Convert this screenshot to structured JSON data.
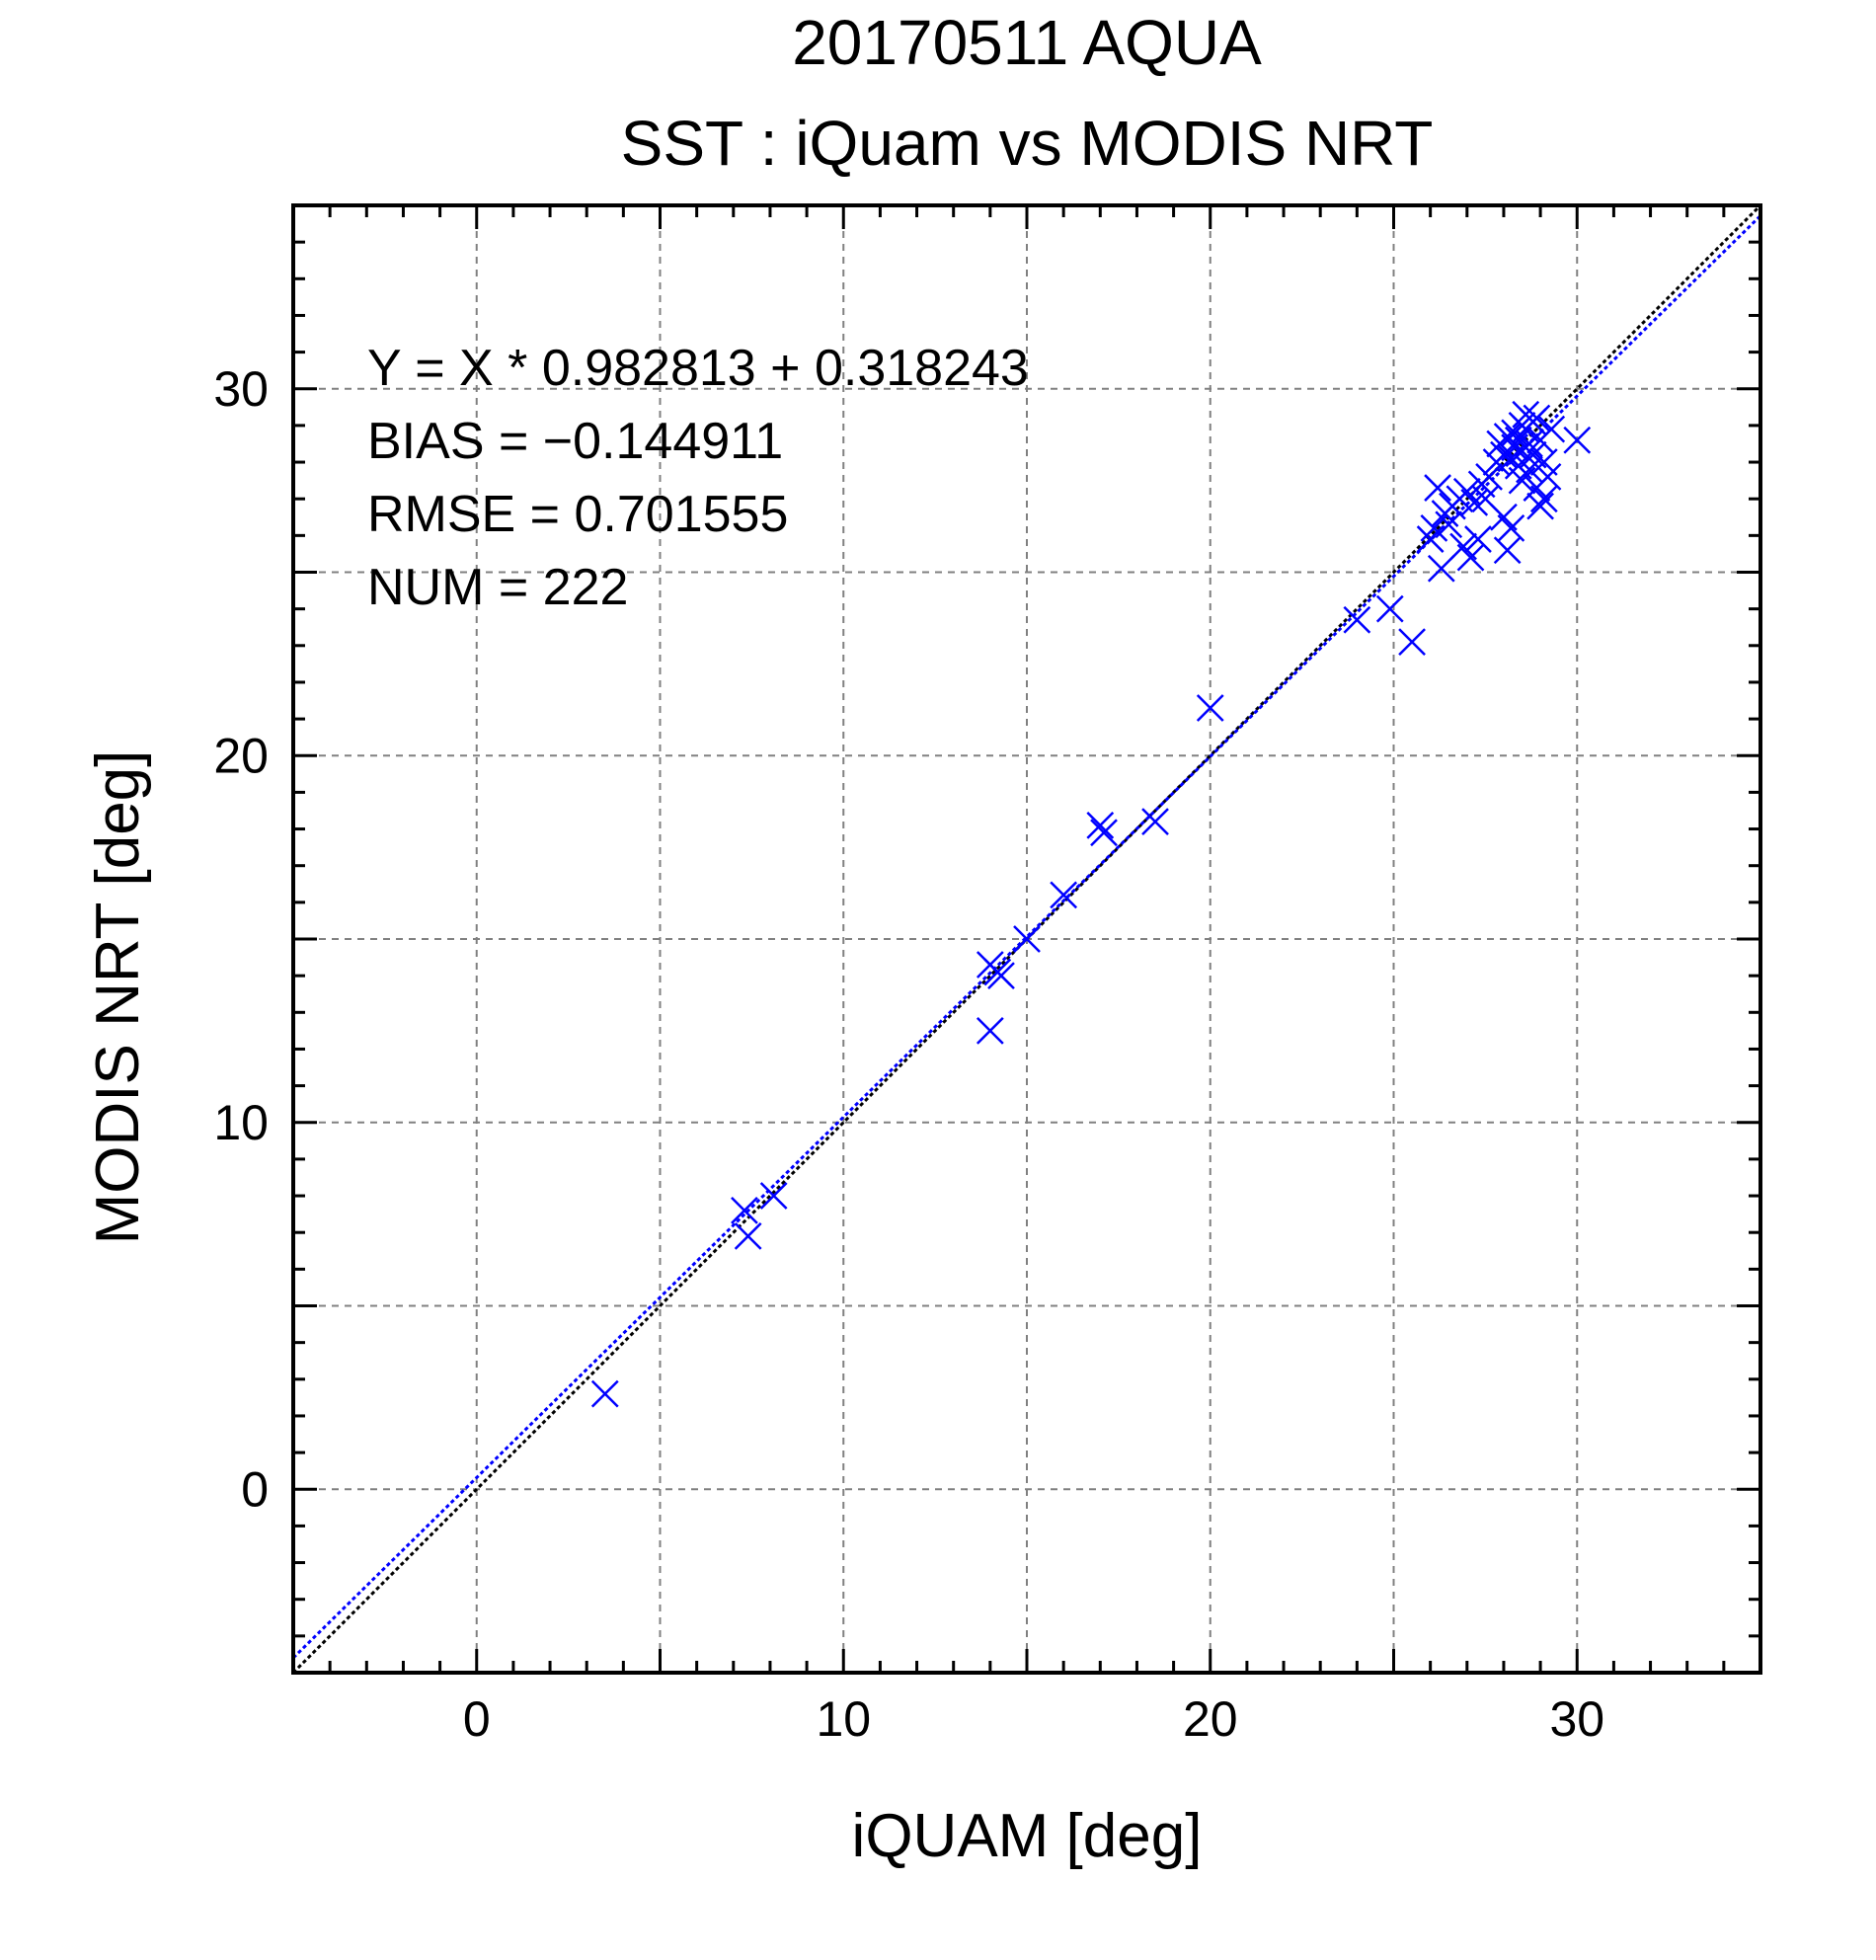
{
  "chart_data": {
    "type": "scatter",
    "title": "20170511 AQUA",
    "subtitle": "SST : iQuam vs MODIS NRT",
    "xlabel": "iQUAM [deg]",
    "ylabel": "MODIS NRT [deg]",
    "xlim": [
      -5,
      35
    ],
    "ylim": [
      -5,
      35
    ],
    "grid": true,
    "xticks": [
      {
        "value": 0,
        "label": "0"
      },
      {
        "value": 10,
        "label": "10"
      },
      {
        "value": 20,
        "label": "20"
      },
      {
        "value": 30,
        "label": "30"
      }
    ],
    "yticks": [
      {
        "value": 0,
        "label": "0"
      },
      {
        "value": 10,
        "label": "10"
      },
      {
        "value": 20,
        "label": "20"
      },
      {
        "value": 30,
        "label": "30"
      }
    ],
    "grid_values": [
      -5,
      0,
      5,
      10,
      15,
      20,
      25,
      30,
      35
    ],
    "minor_step": 1,
    "annotations": [
      "Y = X * 0.982813 + 0.318243",
      "BIAS = −0.144911",
      "RMSE = 0.701555",
      "NUM = 222"
    ],
    "reference_line": {
      "slope": 1,
      "intercept": 0,
      "color": "#000000"
    },
    "regression_line": {
      "slope": 0.982813,
      "intercept": 0.318243,
      "color": "#0000ff"
    },
    "marker_color": "#0000ff",
    "marker": "x",
    "points": [
      [
        3.5,
        2.6
      ],
      [
        7.3,
        7.6
      ],
      [
        7.4,
        6.9
      ],
      [
        8.1,
        8.0
      ],
      [
        14.0,
        14.3
      ],
      [
        14.2,
        14.1
      ],
      [
        14.3,
        14.0
      ],
      [
        14.0,
        12.5
      ],
      [
        15.0,
        15.0
      ],
      [
        16.0,
        16.2
      ],
      [
        17.0,
        18.1
      ],
      [
        17.1,
        17.9
      ],
      [
        18.5,
        18.2
      ],
      [
        20.0,
        21.3
      ],
      [
        24.0,
        23.7
      ],
      [
        24.9,
        24.0
      ],
      [
        25.5,
        23.1
      ],
      [
        26.0,
        25.9
      ],
      [
        26.1,
        26.2
      ],
      [
        26.2,
        27.3
      ],
      [
        26.3,
        25.1
      ],
      [
        26.4,
        26.6
      ],
      [
        26.5,
        26.3
      ],
      [
        26.6,
        26.8
      ],
      [
        26.8,
        27.0
      ],
      [
        26.9,
        25.7
      ],
      [
        27.0,
        27.2
      ],
      [
        27.1,
        25.4
      ],
      [
        27.2,
        26.9
      ],
      [
        27.3,
        25.9
      ],
      [
        27.4,
        27.4
      ],
      [
        27.5,
        27.0
      ],
      [
        27.6,
        27.6
      ],
      [
        27.8,
        28.0
      ],
      [
        27.9,
        28.5
      ],
      [
        28.0,
        26.5
      ],
      [
        28.0,
        28.2
      ],
      [
        28.1,
        28.7
      ],
      [
        28.1,
        25.6
      ],
      [
        28.2,
        28.1
      ],
      [
        28.2,
        26.2
      ],
      [
        28.3,
        28.4
      ],
      [
        28.3,
        28.8
      ],
      [
        28.4,
        27.9
      ],
      [
        28.4,
        28.6
      ],
      [
        28.5,
        29.0
      ],
      [
        28.5,
        28.3
      ],
      [
        28.5,
        27.5
      ],
      [
        28.6,
        28.9
      ],
      [
        28.6,
        29.3
      ],
      [
        28.7,
        28.5
      ],
      [
        28.7,
        27.8
      ],
      [
        28.8,
        29.1
      ],
      [
        28.8,
        28.2
      ],
      [
        28.9,
        27.3
      ],
      [
        28.9,
        29.2
      ],
      [
        29.0,
        28.6
      ],
      [
        29.0,
        26.8
      ],
      [
        29.1,
        27.0
      ],
      [
        29.1,
        28.0
      ],
      [
        29.2,
        27.6
      ],
      [
        29.3,
        28.9
      ],
      [
        30.0,
        28.6
      ]
    ]
  }
}
